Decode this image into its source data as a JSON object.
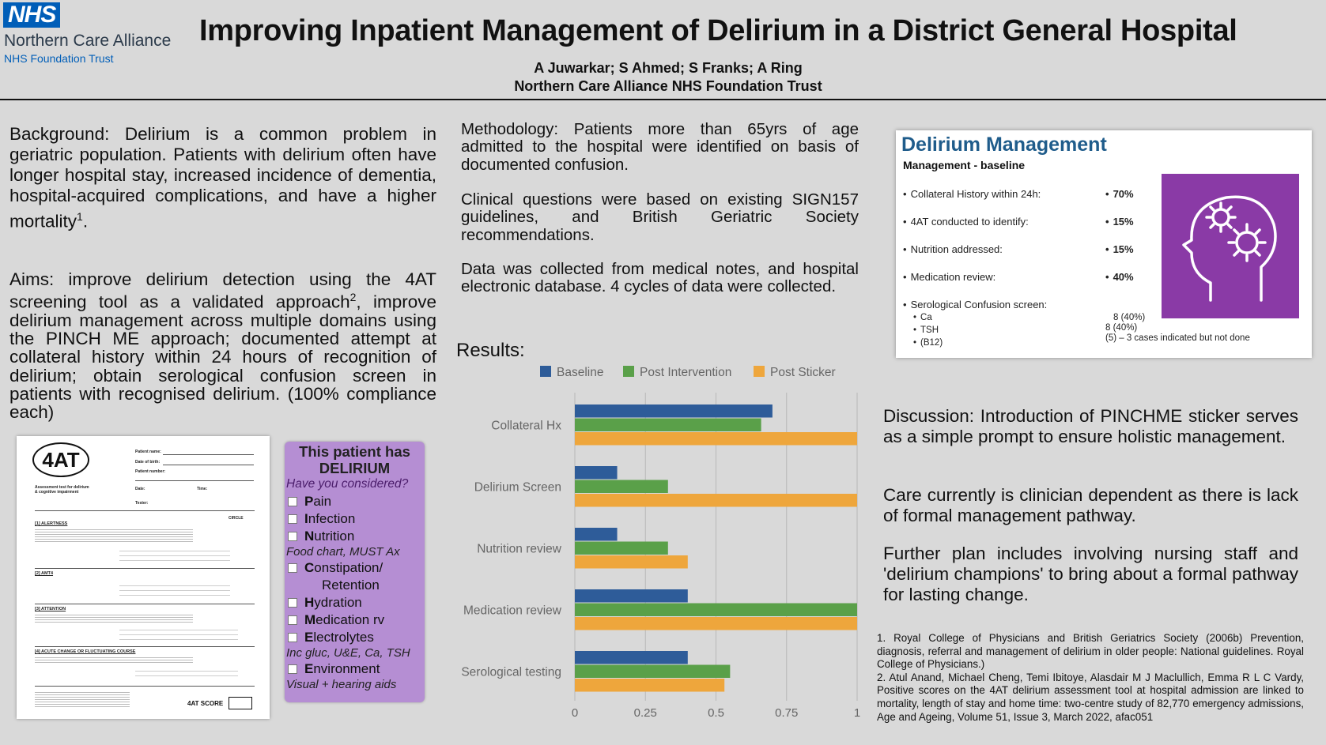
{
  "header": {
    "nhs_logo": "NHS",
    "org_name": "Northern Care Alliance",
    "trust": "NHS Foundation Trust",
    "title": "Improving Inpatient Management of Delirium in a District General Hospital",
    "authors": "A Juwarkar; S Ahmed; S Franks; A Ring",
    "affiliation": "Northern Care Alliance NHS Foundation Trust"
  },
  "background": "Background: Delirium is a common problem in geriatric population. Patients with delirium often have longer hospital stay, increased incidence of dementia, hospital-acquired complications, and have a higher mortality",
  "background_sup": "1",
  "aims_a": "Aims: improve delirium detection using the 4AT screening tool as a validated approach",
  "aims_sup": "2",
  "aims_b": ", improve delirium management across multiple domains using the PINCH ME approach; documented attempt at collateral history within 24 hours of recognition of delirium; obtain serological confusion screen in patients with recognised delirium. (100% compliance each)",
  "methodology": [
    "Methodology: Patients more than 65yrs of age admitted to the hospital were identified on basis of documented confusion.",
    "Clinical questions were based on existing SIGN157 guidelines, and British Geriatric Society recommendations.",
    "Data was collected from medical notes, and hospital electronic database. 4 cycles of data were collected."
  ],
  "results_heading": "Results:",
  "chart_data": {
    "type": "bar",
    "orientation": "horizontal",
    "categories": [
      "Collateral Hx",
      "Delirium Screen",
      "Nutrition review",
      "Medication review",
      "Serological testing"
    ],
    "series": [
      {
        "name": "Baseline",
        "color": "#2e5c99",
        "values": [
          0.7,
          0.15,
          0.15,
          0.4,
          0.4
        ]
      },
      {
        "name": "Post Intervention",
        "color": "#5aa049",
        "values": [
          0.66,
          0.33,
          0.33,
          1.0,
          0.55
        ]
      },
      {
        "name": "Post Sticker",
        "color": "#eea63c",
        "values": [
          1.0,
          1.0,
          0.4,
          1.0,
          0.53
        ]
      }
    ],
    "xlim": [
      0,
      1
    ],
    "xticks": [
      "0",
      "0.25",
      "0.5",
      "0.75",
      "1"
    ],
    "legend": "top",
    "grid": true
  },
  "form_4at": {
    "logo": "4AT",
    "patient_name": "Patient name:",
    "dob": "Date of birth:",
    "patient_number": "Patient number:",
    "date": "Date:",
    "time": "Time:",
    "tester": "Tester:",
    "assessment_title": "Assessment test for delirium & cognitive impairment",
    "circle": "CIRCLE",
    "sec1": "[1] ALERTNESS",
    "sec2": "[2] AMT4",
    "sec3": "[3] ATTENTION",
    "sec4": "[4] ACUTE CHANGE OR FLUCTUATING COURSE",
    "score_label": "4AT SCORE"
  },
  "sticker": {
    "title_1": "This patient has",
    "title_2": "DELIRIUM",
    "question": "Have you considered?",
    "items": [
      {
        "initial": "P",
        "rest": "ain"
      },
      {
        "initial": "I",
        "rest": "nfection"
      },
      {
        "initial": "N",
        "rest": "utrition"
      },
      {
        "initial": "C",
        "rest": "onstipation/"
      },
      {
        "initial": "H",
        "rest": "ydration"
      },
      {
        "initial": "M",
        "rest": "edication rv"
      },
      {
        "initial": "E",
        "rest": "lectrolytes"
      },
      {
        "initial": "E",
        "rest": "nvironment"
      }
    ],
    "note_food": "Food chart, MUST Ax",
    "retention": "Retention",
    "note_elec": "Inc gluc, U&E, Ca, TSH",
    "note_env": "Visual + hearing aids"
  },
  "delirium_management": {
    "title": "Delirium Management",
    "subtitle": "Management - baseline",
    "rows": [
      {
        "label": "Collateral History within 24h:",
        "value": "70%"
      },
      {
        "label": "4AT conducted to identify:",
        "value": "15%"
      },
      {
        "label": "Nutrition addressed:",
        "value": "15%"
      },
      {
        "label": "Medication review:",
        "value": "40%"
      }
    ],
    "serology_label": "Serological Confusion screen:",
    "serology": [
      {
        "label": "Ca",
        "value": "8 (40%)"
      },
      {
        "label": "TSH",
        "value": "8 (40%)"
      },
      {
        "label": "(B12)",
        "value": "(5) – 3 cases indicated but not done"
      }
    ],
    "icon": "head-gears-icon"
  },
  "discussion": [
    "Discussion: Introduction of PINCHME sticker serves as a simple prompt to ensure holistic management.",
    "Care currently is clinician dependent as there is lack of formal management pathway.",
    "Further plan includes involving nursing staff and 'delirium champions' to bring about a formal pathway for lasting change."
  ],
  "references": [
    "1. Royal College of Physicians and British Geriatrics Society (2006b) Prevention, diagnosis, referral and management of delirium in older people: National guidelines. Royal College of Physicians.)",
    "2. Atul Anand, Michael Cheng, Temi Ibitoye, Alasdair M J Maclullich, Emma R L C Vardy, Positive scores on the 4AT delirium assessment tool at hospital admission are linked to mortality, length of stay and home time: two-centre study of 82,770 emergency admissions, Age and Ageing, Volume 51, Issue 3, March 2022, afac051"
  ]
}
